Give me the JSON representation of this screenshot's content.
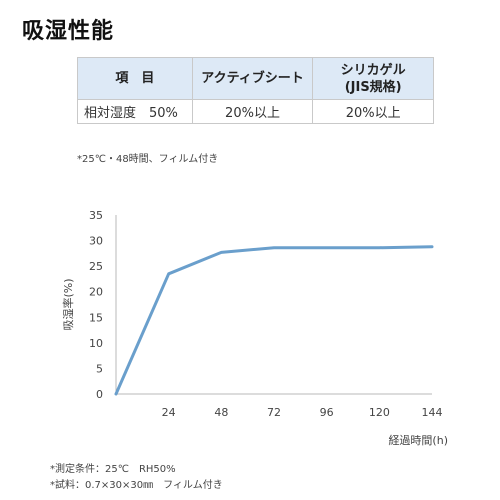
{
  "page": {
    "title": "吸湿性能"
  },
  "table": {
    "header": {
      "item": "項　目",
      "product": "アクティブシート",
      "silica_line1": "シリカゲル",
      "silica_line2": "(JIS規格)"
    },
    "row": {
      "label": "相対湿度　50%",
      "product_value": "20%以上",
      "silica_value": "20%以上"
    }
  },
  "notes": {
    "top": "*25℃・48時間、フィルム付き",
    "bottom1": "*測定条件：25℃　RH50%",
    "bottom2": "*試料：0.7×30×30㎜　フィルム付き"
  },
  "colors": {
    "line": "#6a9fcc",
    "axis": "#b8b8b8",
    "header_bg": "#dde9f6"
  },
  "chart_data": {
    "type": "line",
    "x": [
      0,
      24,
      48,
      72,
      96,
      120,
      144
    ],
    "series": [
      {
        "values": [
          0,
          23.5,
          27.7,
          28.6,
          28.6,
          28.6,
          28.8
        ]
      }
    ],
    "xlabel": "経過時間(h)",
    "ylabel": "吸湿率(%)",
    "xlim": [
      0,
      144
    ],
    "ylim": [
      0,
      35
    ],
    "xticks": [
      "",
      "24",
      "48",
      "72",
      "96",
      "120",
      "144"
    ],
    "yticks": [
      "0",
      "5",
      "10",
      "15",
      "20",
      "25",
      "30",
      "35"
    ],
    "grid": false
  }
}
